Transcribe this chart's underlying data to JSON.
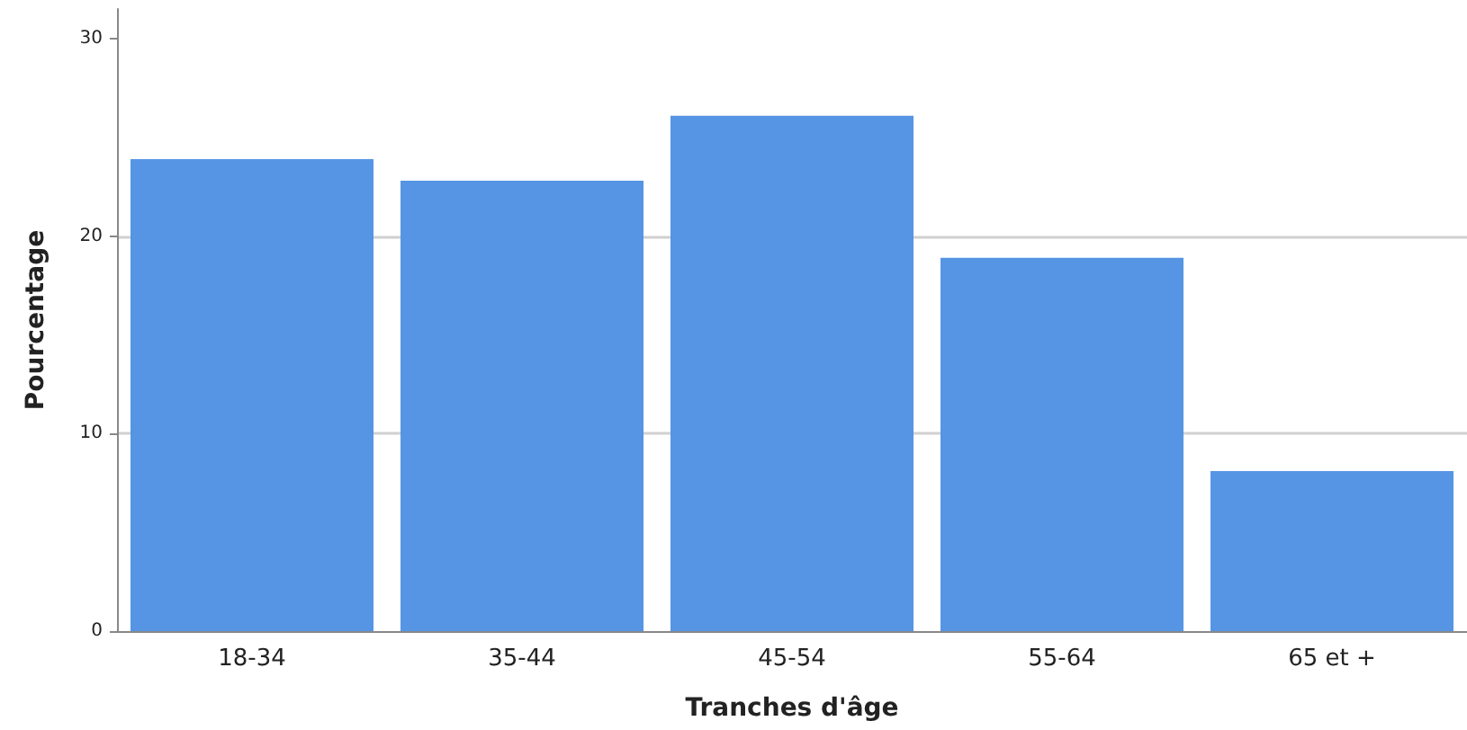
{
  "chart_data": {
    "type": "bar",
    "xlabel": "Tranches d'âge",
    "ylabel": "Pourcentage",
    "categories": [
      "18-34",
      "35-44",
      "45-54",
      "55-64",
      "65 et +"
    ],
    "values": [
      23.9,
      22.8,
      26.1,
      18.9,
      8.1
    ],
    "color": "#5595e4",
    "ylim": [
      0,
      31.5
    ],
    "yticks": [
      0,
      10,
      20,
      30
    ],
    "grid": "y"
  }
}
